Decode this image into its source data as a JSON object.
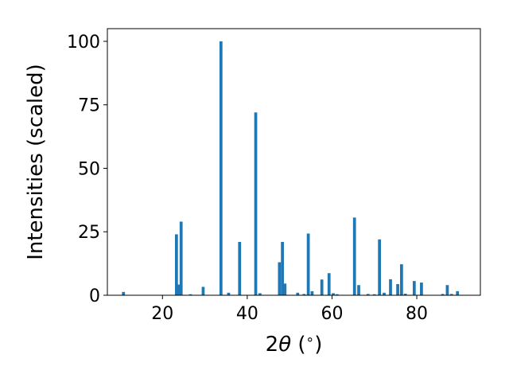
{
  "chart_data": {
    "type": "bar",
    "xlabel": "2θ (∘)",
    "xlabel_prefix": "2",
    "xlabel_theta": "θ",
    "xlabel_unit": " (",
    "xlabel_degree": "∘",
    "xlabel_close": ")",
    "ylabel": "Intensities (scaled)",
    "xlim": [
      7,
      95
    ],
    "ylim": [
      0,
      105
    ],
    "xticks": [
      20,
      40,
      60,
      80
    ],
    "yticks": [
      0,
      25,
      50,
      75,
      100
    ],
    "grid": false,
    "legend": "none",
    "bar_color": "#1f77b4",
    "bar_width_deg": 0.7,
    "x": [
      10.8,
      23.3,
      23.8,
      24.4,
      26.6,
      29.6,
      33.8,
      35.6,
      38.2,
      42.0,
      43.0,
      47.6,
      48.3,
      48.9,
      51.9,
      53.4,
      54.4,
      55.3,
      57.6,
      59.3,
      60.3,
      61.2,
      65.3,
      66.3,
      68.5,
      70.0,
      71.2,
      72.3,
      73.8,
      75.5,
      76.4,
      77.3,
      79.4,
      81.1,
      86.1,
      87.2,
      88.2,
      89.6
    ],
    "values": [
      1.3,
      24.0,
      4.2,
      29.0,
      0.4,
      3.3,
      100,
      1.0,
      21.0,
      72.0,
      0.8,
      13.0,
      21.0,
      4.6,
      1.0,
      0.5,
      24.3,
      1.6,
      6.2,
      8.7,
      0.8,
      0.4,
      30.6,
      4.0,
      0.5,
      0.4,
      22.0,
      1.0,
      6.3,
      4.4,
      12.2,
      0.6,
      5.6,
      5.0,
      0.5,
      4.0,
      0.5,
      1.6
    ]
  }
}
